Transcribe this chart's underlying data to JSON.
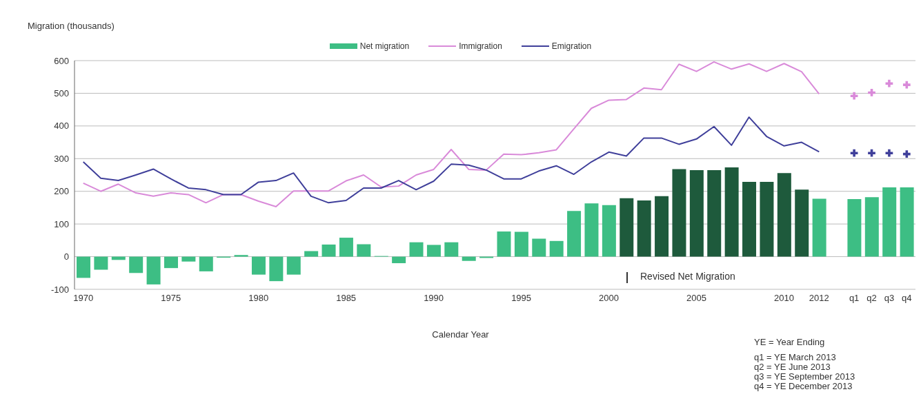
{
  "chart_data": {
    "type": "bar",
    "ylabel": "Migration (thousands)",
    "xlabel": "Calendar Year",
    "categories": [
      "1970",
      null,
      null,
      null,
      null,
      "1975",
      null,
      null,
      null,
      null,
      "1980",
      null,
      null,
      null,
      null,
      "1985",
      null,
      null,
      null,
      null,
      "1990",
      null,
      null,
      null,
      null,
      "1995",
      null,
      null,
      null,
      null,
      "2000",
      null,
      null,
      null,
      null,
      "2005",
      null,
      null,
      null,
      null,
      "2010",
      null,
      "2012",
      null,
      "q1",
      "q2",
      "q3",
      "q4"
    ],
    "series": [
      {
        "name": "Net migration",
        "color": "#3dbe84",
        "colors": [
          "#3dbe84",
          "#3dbe84",
          "#3dbe84",
          "#3dbe84",
          "#3dbe84",
          "#3dbe84",
          "#3dbe84",
          "#3dbe84",
          "#3dbe84",
          "#3dbe84",
          "#3dbe84",
          "#3dbe84",
          "#3dbe84",
          "#3dbe84",
          "#3dbe84",
          "#3dbe84",
          "#3dbe84",
          "#3dbe84",
          "#3dbe84",
          "#3dbe84",
          "#3dbe84",
          "#3dbe84",
          "#3dbe84",
          "#3dbe84",
          "#3dbe84",
          "#3dbe84",
          "#3dbe84",
          "#3dbe84",
          "#3dbe84",
          "#3dbe84",
          "#3dbe84",
          "#1e5a3c",
          "#1e5a3c",
          "#1e5a3c",
          "#1e5a3c",
          "#1e5a3c",
          "#1e5a3c",
          "#1e5a3c",
          "#1e5a3c",
          "#1e5a3c",
          "#1e5a3c",
          "#1e5a3c",
          "#3dbe84",
          "#3dbe84",
          "#3dbe84",
          "#3dbe84",
          "#3dbe84",
          "#3dbe84"
        ],
        "values": [
          -65,
          -40,
          -10,
          -50,
          -85,
          -35,
          -15,
          -45,
          -3,
          5,
          -55,
          -75,
          -55,
          17,
          37,
          58,
          38,
          2,
          -20,
          44,
          36,
          44,
          -13,
          -4,
          77,
          76,
          55,
          48,
          140,
          163,
          158,
          179,
          172,
          185,
          268,
          265,
          265,
          273,
          229,
          229,
          256,
          205,
          177,
          null,
          176,
          182,
          212,
          212
        ]
      },
      {
        "name": "Immigration",
        "type": "line",
        "color": "#d98ad9",
        "values": [
          225,
          200,
          222,
          195,
          185,
          195,
          190,
          165,
          190,
          190,
          170,
          153,
          201,
          201,
          201,
          232,
          250,
          213,
          216,
          250,
          267,
          328,
          267,
          265,
          314,
          312,
          318,
          327,
          391,
          454,
          479,
          481,
          516,
          511,
          589,
          567,
          596,
          574,
          590,
          567,
          591,
          566,
          498,
          null,
          null,
          null,
          null,
          null
        ]
      },
      {
        "name": "Emigration",
        "type": "line",
        "color": "#3f3f9a",
        "values": [
          290,
          240,
          233,
          250,
          268,
          238,
          210,
          205,
          190,
          190,
          228,
          233,
          256,
          185,
          165,
          172,
          210,
          210,
          233,
          205,
          231,
          283,
          280,
          265,
          238,
          238,
          262,
          278,
          252,
          290,
          320,
          308,
          363,
          363,
          344,
          360,
          398,
          341,
          427,
          368,
          339,
          350,
          321,
          null,
          null,
          null,
          null,
          null
        ]
      },
      {
        "type": "scatter",
        "marker": "cross",
        "color": "#d98ad9",
        "values": [
          null,
          null,
          null,
          null,
          null,
          null,
          null,
          null,
          null,
          null,
          null,
          null,
          null,
          null,
          null,
          null,
          null,
          null,
          null,
          null,
          null,
          null,
          null,
          null,
          null,
          null,
          null,
          null,
          null,
          null,
          null,
          null,
          null,
          null,
          null,
          null,
          null,
          null,
          null,
          null,
          null,
          null,
          null,
          null,
          492,
          502,
          530,
          526
        ]
      },
      {
        "type": "scatter",
        "marker": "cross",
        "color": "#3f3f9a",
        "values": [
          null,
          null,
          null,
          null,
          null,
          null,
          null,
          null,
          null,
          null,
          null,
          null,
          null,
          null,
          null,
          null,
          null,
          null,
          null,
          null,
          null,
          null,
          null,
          null,
          null,
          null,
          null,
          null,
          null,
          null,
          null,
          null,
          null,
          null,
          null,
          null,
          null,
          null,
          null,
          null,
          null,
          null,
          null,
          null,
          317,
          317,
          317,
          314
        ]
      }
    ],
    "ylim": [
      -100,
      600
    ],
    "yticks": [
      -100,
      0,
      100,
      200,
      300,
      400,
      500,
      600
    ],
    "grid": "y",
    "legend": "top",
    "annotations": [
      "Revised Net Migration",
      "YE = Year Ending",
      "q1 = YE March 2013",
      "q2 = YE June 2013",
      "q3 = YE September 2013",
      "q4 = YE December 2013"
    ]
  }
}
